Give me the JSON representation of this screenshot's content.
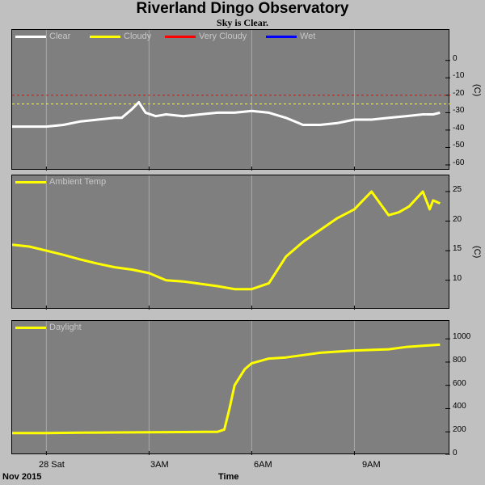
{
  "title": "Riverland Dingo Observatory",
  "subtitle": "Sky is Clear.",
  "footer": {
    "date": "Nov 2015",
    "xlabel": "Time"
  },
  "x_ticks": [
    "28 Sat",
    "3AM",
    "6AM",
    "9AM"
  ],
  "colors": {
    "clear": "#ffffff",
    "cloudy": "#ffff00",
    "very_cloudy": "#ff0000",
    "wet": "#0000ff",
    "panel_bg": "#7f7f7f"
  },
  "chart_data": [
    {
      "type": "line",
      "name": "sky",
      "legend": [
        "Clear",
        "Cloudy",
        "Very Cloudy",
        "Wet"
      ],
      "ylabel": "(C)",
      "ylim": [
        -60,
        5
      ],
      "yticks": [
        0,
        -10,
        -20,
        -30,
        -40,
        -50,
        -60
      ],
      "thresholds": [
        {
          "label": "Very Cloudy",
          "value": -20,
          "color": "#ff0000"
        },
        {
          "label": "Cloudy",
          "value": -25,
          "color": "#ffff00"
        }
      ],
      "series": [
        {
          "name": "Clear",
          "color": "#ffffff",
          "x": [
            -1.0,
            -0.5,
            0.0,
            0.5,
            1.0,
            1.5,
            2.0,
            2.2,
            2.5,
            2.7,
            2.9,
            3.2,
            3.5,
            4.0,
            4.5,
            5.0,
            5.5,
            6.0,
            6.5,
            7.0,
            7.5,
            8.0,
            8.5,
            9.0,
            9.5,
            10.0,
            10.5,
            11.0,
            11.3,
            11.5
          ],
          "y": [
            -38,
            -38,
            -38,
            -37,
            -35,
            -34,
            -33,
            -33,
            -28,
            -24,
            -30,
            -32,
            -31,
            -32,
            -31,
            -30,
            -30,
            -29,
            -30,
            -33,
            -37,
            -37,
            -36,
            -34,
            -34,
            -33,
            -32,
            -31,
            -31,
            -30
          ]
        }
      ]
    },
    {
      "type": "line",
      "name": "ambient",
      "legend": [
        "Ambient Temp"
      ],
      "ylabel": "(C)",
      "ylim": [
        7.5,
        26.5
      ],
      "yticks": [
        25,
        20,
        15,
        10
      ],
      "series": [
        {
          "name": "Ambient Temp",
          "color": "#ffff00",
          "x": [
            -1.0,
            -0.5,
            0.0,
            0.5,
            1.0,
            1.5,
            2.0,
            2.5,
            3.0,
            3.5,
            4.0,
            4.5,
            5.0,
            5.5,
            6.0,
            6.5,
            7.0,
            7.5,
            8.0,
            8.5,
            9.0,
            9.5,
            10.0,
            10.3,
            10.6,
            11.0,
            11.2,
            11.3,
            11.5
          ],
          "y": [
            16.0,
            15.7,
            15.0,
            14.3,
            13.5,
            12.8,
            12.2,
            11.8,
            11.2,
            10.0,
            9.8,
            9.4,
            9.0,
            8.5,
            8.5,
            9.5,
            14.0,
            16.5,
            18.5,
            20.5,
            22.0,
            25.0,
            21.0,
            21.5,
            22.5,
            25.0,
            22.0,
            23.5,
            23.0
          ]
        }
      ]
    },
    {
      "type": "line",
      "name": "daylight",
      "legend": [
        "Daylight"
      ],
      "ylabel": "",
      "ylim": [
        0,
        1050
      ],
      "yticks": [
        1000,
        800,
        600,
        400,
        200,
        0
      ],
      "series": [
        {
          "name": "Daylight",
          "color": "#ffff00",
          "x": [
            -1.0,
            0.0,
            1.0,
            2.0,
            3.0,
            4.0,
            5.0,
            5.2,
            5.35,
            5.5,
            5.8,
            6.0,
            6.5,
            7.0,
            7.5,
            8.0,
            8.5,
            9.0,
            9.5,
            10.0,
            10.5,
            11.0,
            11.5
          ],
          "y": [
            190,
            190,
            193,
            195,
            196,
            198,
            200,
            220,
            400,
            600,
            740,
            790,
            830,
            840,
            860,
            880,
            890,
            900,
            905,
            910,
            930,
            940,
            950
          ]
        }
      ]
    }
  ]
}
